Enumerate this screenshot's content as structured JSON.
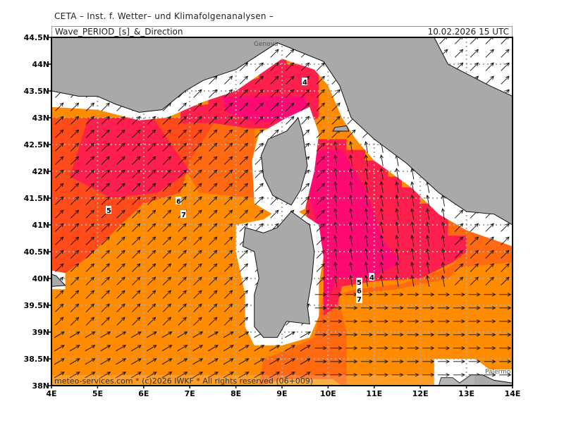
{
  "header": {
    "institute": "CETA – Inst. f. Wetter– und Klimafolgenanalysen –",
    "title": "Wave_PERIOD_[s]_&_Direction",
    "datetime": "10.02.2026 15 UTC"
  },
  "map": {
    "extent": {
      "lon": [
        4,
        14
      ],
      "lat": [
        38,
        44.5
      ]
    },
    "lon_labels": [
      "4E",
      "5E",
      "6E",
      "7E",
      "8E",
      "9E",
      "10E",
      "11E",
      "12E",
      "13E",
      "14E"
    ],
    "lat_labels": [
      "38N",
      "38.5N",
      "39N",
      "39.5N",
      "40N",
      "40.5N",
      "41N",
      "41.5N",
      "42N",
      "42.5N",
      "43N",
      "43.5N",
      "44N",
      "44.5N"
    ],
    "colors": {
      "land": "#a9a9a9",
      "no_data": "#ffffff",
      "period_4_5_magenta": "#ff0a74",
      "period_4_5": "#ff1f4c",
      "period_5_6": "#ff4a1a",
      "period_6": "#ff6a10",
      "period_6_7": "#ff8c00",
      "period_7": "#ffa020",
      "grid": "#aaaaaa",
      "arrow": "#111111"
    },
    "contour_labels": [
      "4",
      "5",
      "6",
      "7",
      "4",
      "5",
      "6",
      "7"
    ],
    "places": [
      "Genova",
      "Palermo"
    ],
    "copyright": "meteo-services.com * (c)2026 IWKF * All rights reserved (06+009)"
  }
}
